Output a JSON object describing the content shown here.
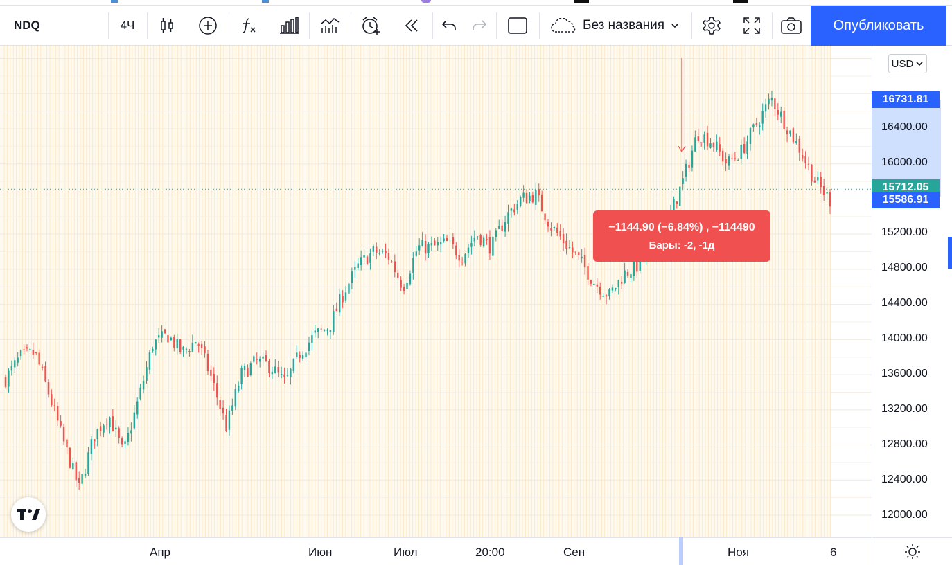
{
  "toolbar": {
    "symbol": "NDQ",
    "interval": "4Ч",
    "layout_name": "Без названия",
    "publish_label": "Опубликовать",
    "icons": [
      "candles-icon",
      "add-compare-icon",
      "indicators-icon",
      "templates-icon",
      "replay-bars-icon",
      "alert-icon",
      "replay-icon",
      "undo-icon",
      "redo-icon",
      "rectangle-icon",
      "cloud-icon",
      "chevron-down-icon",
      "settings-icon",
      "fullscreen-icon",
      "camera-icon"
    ]
  },
  "price_axis": {
    "currency": "USD",
    "ticks": [
      "12000.00",
      "12400.00",
      "12800.00",
      "13200.00",
      "13600.00",
      "14000.00",
      "14400.00",
      "14800.00",
      "15200.00",
      "16000.00",
      "16400.00"
    ],
    "tags": {
      "measure_top": "16731.81",
      "last_price": "15712.05",
      "measure_bottom": "15586.91"
    },
    "colors": {
      "measure": "#2962ff",
      "last": "#26a69a",
      "up": "#26a69a",
      "down": "#ef5350"
    }
  },
  "time_axis": {
    "labels": [
      "Апр",
      "Июн",
      "Июл",
      "20:00",
      "Сен",
      "Ноя",
      "6"
    ]
  },
  "measure": {
    "line1": "−1144.90 (−6.84%) , −114490",
    "line2": "Бары: -2, -1д"
  },
  "chart_data": {
    "type": "candlestick",
    "symbol": "NDQ",
    "interval": "4Ч",
    "ylim": [
      11800,
      17300
    ],
    "x_labels": [
      "Апр",
      "Июн",
      "Июл",
      "20:00",
      "Сен",
      "Ноя",
      "6"
    ],
    "approx_close_path": [
      13550,
      13800,
      13850,
      13350,
      12800,
      12300,
      12900,
      13150,
      12700,
      13300,
      13950,
      14050,
      13850,
      14000,
      13550,
      13000,
      13600,
      13750,
      13700,
      13500,
      13850,
      14050,
      14150,
      14550,
      14850,
      15000,
      14950,
      14600,
      15050,
      15050,
      15100,
      14950,
      15200,
      15050,
      15400,
      15600,
      15650,
      15300,
      15100,
      14900,
      14650,
      14500,
      14750,
      14850,
      15100,
      15350,
      15800,
      16350,
      16250,
      16000,
      16150,
      16450,
      16750,
      16450,
      16150,
      15800,
      15587
    ],
    "last_price": 15712.05,
    "measure": {
      "from": 16731.81,
      "to": 15586.91,
      "change": -1144.9,
      "change_pct": -6.84,
      "bars": -2
    }
  }
}
